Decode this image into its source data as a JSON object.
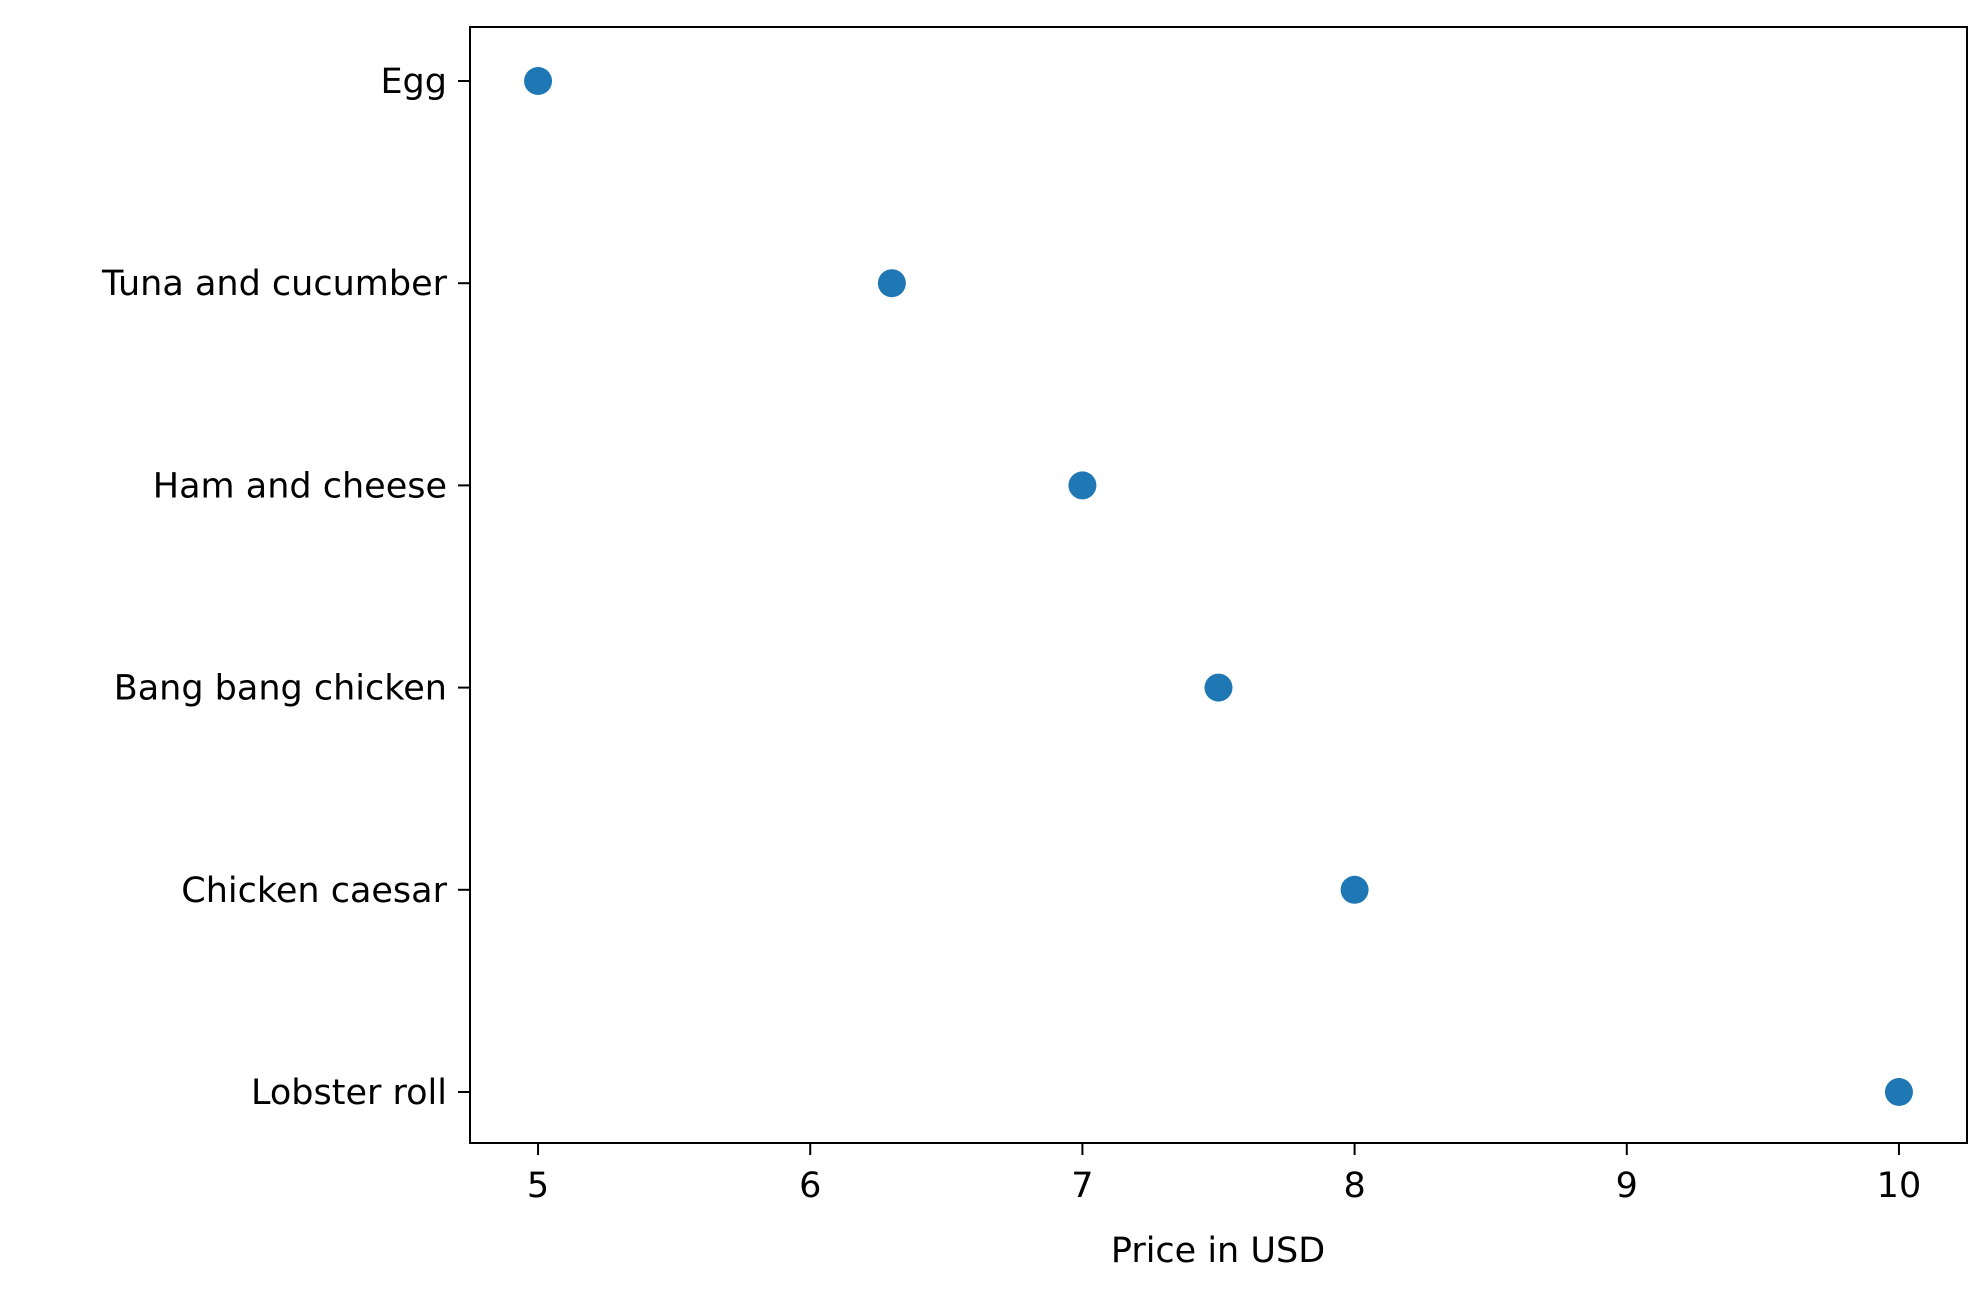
{
  "chart_data": {
    "type": "scatter",
    "title": "",
    "xlabel": "Price in USD",
    "ylabel": "",
    "xlim": [
      4.75,
      10.25
    ],
    "xticks": [
      5,
      6,
      7,
      8,
      9,
      10
    ],
    "categories": [
      "Egg",
      "Tuna and cucumber",
      "Ham and cheese",
      "Bang bang chicken",
      "Chicken caesar",
      "Lobster roll"
    ],
    "values": [
      5.0,
      6.3,
      7.0,
      7.5,
      8.0,
      10.0
    ],
    "grid": false,
    "legend": "none",
    "colors": {
      "marker": "#1f77b4",
      "axis": "#000000"
    }
  }
}
